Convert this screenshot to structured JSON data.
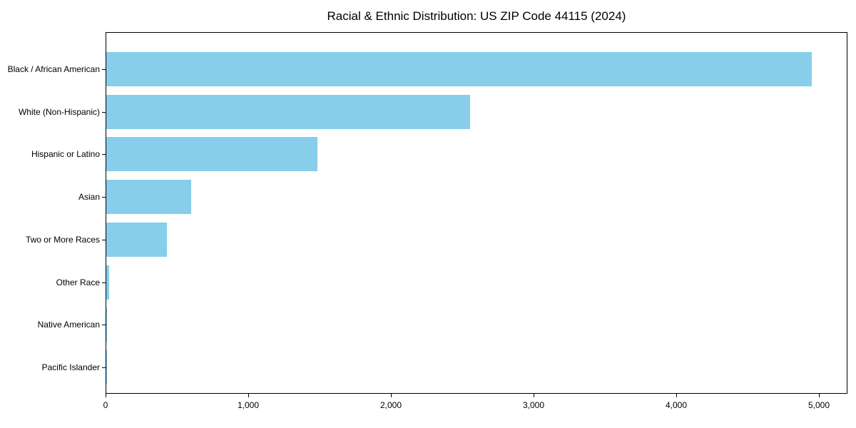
{
  "chart_data": {
    "type": "bar",
    "orientation": "horizontal",
    "title": "Racial & Ethnic Distribution: US ZIP Code 44115 (2024)",
    "categories": [
      "Black / African American",
      "White (Non-Hispanic)",
      "Hispanic or Latino",
      "Asian",
      "Two or More Races",
      "Other Race",
      "Native American",
      "Pacific Islander"
    ],
    "values": [
      4945,
      2550,
      1480,
      595,
      425,
      20,
      5,
      2
    ],
    "xlabel": "",
    "ylabel": "",
    "xlim": [
      0,
      5200
    ],
    "x_ticks": [
      0,
      1000,
      2000,
      3000,
      4000,
      5000
    ],
    "x_tick_labels": [
      "0",
      "1,000",
      "2,000",
      "3,000",
      "4,000",
      "5,000"
    ],
    "bar_color": "#87CEEB",
    "frame_color": "#000000",
    "grid": false,
    "legend": null
  }
}
